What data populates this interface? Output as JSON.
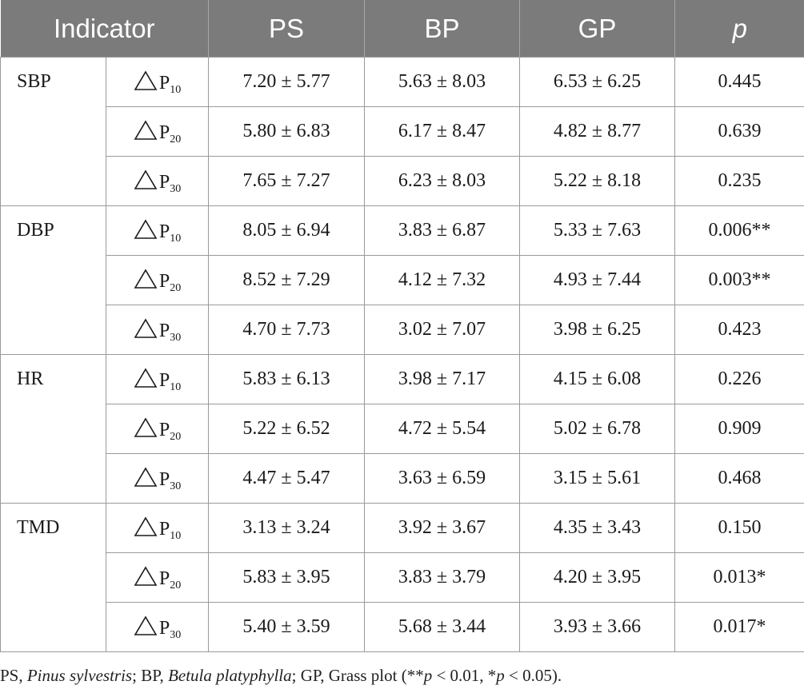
{
  "table": {
    "headers": [
      "Indicator",
      "PS",
      "BP",
      "GP",
      "p"
    ],
    "groups": [
      {
        "indicator": "SBP",
        "rows": [
          {
            "delta": "P",
            "sub": "10",
            "ps": "7.20 ± 5.77",
            "bp": "5.63 ± 8.03",
            "gp": "6.53 ± 6.25",
            "p": "0.445"
          },
          {
            "delta": "P",
            "sub": "20",
            "ps": "5.80 ± 6.83",
            "bp": "6.17 ± 8.47",
            "gp": "4.82 ± 8.77",
            "p": "0.639"
          },
          {
            "delta": "P",
            "sub": "30",
            "ps": "7.65 ± 7.27",
            "bp": "6.23 ± 8.03",
            "gp": "5.22 ± 8.18",
            "p": "0.235"
          }
        ]
      },
      {
        "indicator": "DBP",
        "rows": [
          {
            "delta": "P",
            "sub": "10",
            "ps": "8.05 ± 6.94",
            "bp": "3.83 ± 6.87",
            "gp": "5.33 ± 7.63",
            "p": "0.006**"
          },
          {
            "delta": "P",
            "sub": "20",
            "ps": "8.52 ± 7.29",
            "bp": "4.12 ± 7.32",
            "gp": "4.93 ± 7.44",
            "p": "0.003**"
          },
          {
            "delta": "P",
            "sub": "30",
            "ps": "4.70 ± 7.73",
            "bp": "3.02 ± 7.07",
            "gp": "3.98 ± 6.25",
            "p": "0.423"
          }
        ]
      },
      {
        "indicator": "HR",
        "rows": [
          {
            "delta": "P",
            "sub": "10",
            "ps": "5.83 ± 6.13",
            "bp": "3.98 ± 7.17",
            "gp": "4.15 ± 6.08",
            "p": "0.226"
          },
          {
            "delta": "P",
            "sub": "20",
            "ps": "5.22 ± 6.52",
            "bp": "4.72 ± 5.54",
            "gp": "5.02 ± 6.78",
            "p": "0.909"
          },
          {
            "delta": "P",
            "sub": "30",
            "ps": "4.47 ± 5.47",
            "bp": "3.63 ± 6.59",
            "gp": "3.15 ± 5.61",
            "p": "0.468"
          }
        ]
      },
      {
        "indicator": "TMD",
        "rows": [
          {
            "delta": "P",
            "sub": "10",
            "ps": "3.13 ± 3.24",
            "bp": "3.92 ± 3.67",
            "gp": "4.35 ± 3.43",
            "p": "0.150"
          },
          {
            "delta": "P",
            "sub": "20",
            "ps": "5.83 ± 3.95",
            "bp": "3.83 ± 3.79",
            "gp": "4.20 ± 3.95",
            "p": "0.013*"
          },
          {
            "delta": "P",
            "sub": "30",
            "ps": "5.40 ± 3.59",
            "bp": "5.68 ± 3.44",
            "gp": "3.93 ± 3.66",
            "p": "0.017*"
          }
        ]
      }
    ]
  },
  "footnote": {
    "t1": "PS, ",
    "i1": "Pinus sylvestris",
    "t2": "; BP, ",
    "i2": "Betula platyphylla",
    "t3": "; GP, Grass plot (**",
    "i3": "p",
    "t4": " < 0.01, *",
    "i4": "p",
    "t5": " < 0.05)."
  },
  "colors": {
    "header_bg": "#7b7b7b",
    "header_text": "#ffffff",
    "grid_line": "#9a9a9a"
  },
  "icons": {
    "delta": "triangle-outline-icon"
  }
}
